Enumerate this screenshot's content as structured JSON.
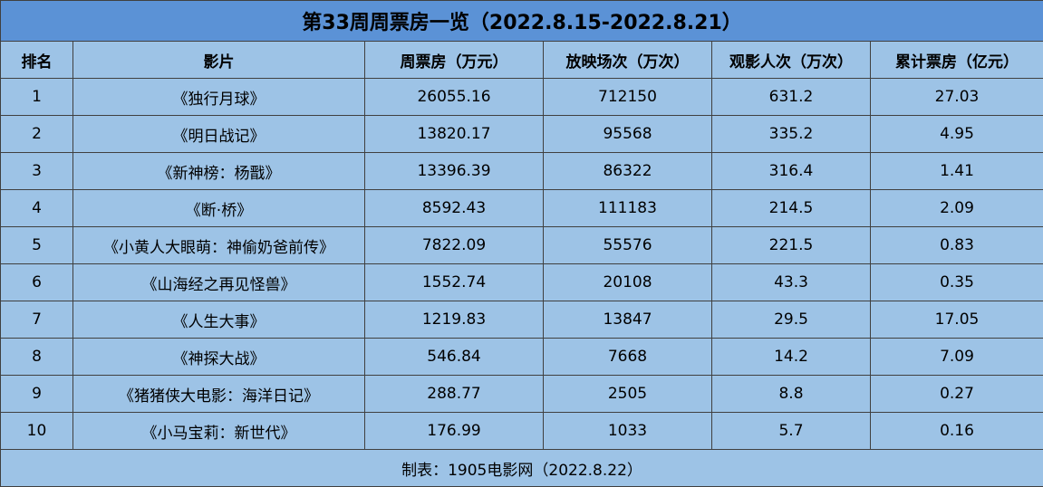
{
  "title": "第33周周票房一览（2022.8.15-2022.8.21）",
  "headers": [
    "排名",
    "影片",
    "周票房（万元）",
    "放映场次（万次）",
    "观影人次（万次）",
    "累计票房（亿元）"
  ],
  "rows": [
    [
      "1",
      "《独行月球》",
      "26055.16",
      "712150",
      "631.2",
      "27.03"
    ],
    [
      "2",
      "《明日战记》",
      "13820.17",
      "95568",
      "335.2",
      "4.95"
    ],
    [
      "3",
      "《新神榜：杨戬》",
      "13396.39",
      "86322",
      "316.4",
      "1.41"
    ],
    [
      "4",
      "《断·桥》",
      "8592.43",
      "111183",
      "214.5",
      "2.09"
    ],
    [
      "5",
      "《小黄人大眼萌：神偷奶爸前传》",
      "7822.09",
      "55576",
      "221.5",
      "0.83"
    ],
    [
      "6",
      "《山海经之再见怪兽》",
      "1552.74",
      "20108",
      "43.3",
      "0.35"
    ],
    [
      "7",
      "《人生大事》",
      "1219.83",
      "13847",
      "29.5",
      "17.05"
    ],
    [
      "8",
      "《神探大战》",
      "546.84",
      "7668",
      "14.2",
      "7.09"
    ],
    [
      "9",
      "《猪猪侠大电影：海洋日记》",
      "288.77",
      "2505",
      "8.8",
      "0.27"
    ],
    [
      "10",
      "《小马宝莉：新世代》",
      "176.99",
      "1033",
      "5.7",
      "0.16"
    ]
  ],
  "footer": "制表：1905电影网（2022.8.22）",
  "colors": {
    "title_bg": "#5b92d6",
    "cell_bg": "#9dc3e6",
    "border": "#404040"
  }
}
